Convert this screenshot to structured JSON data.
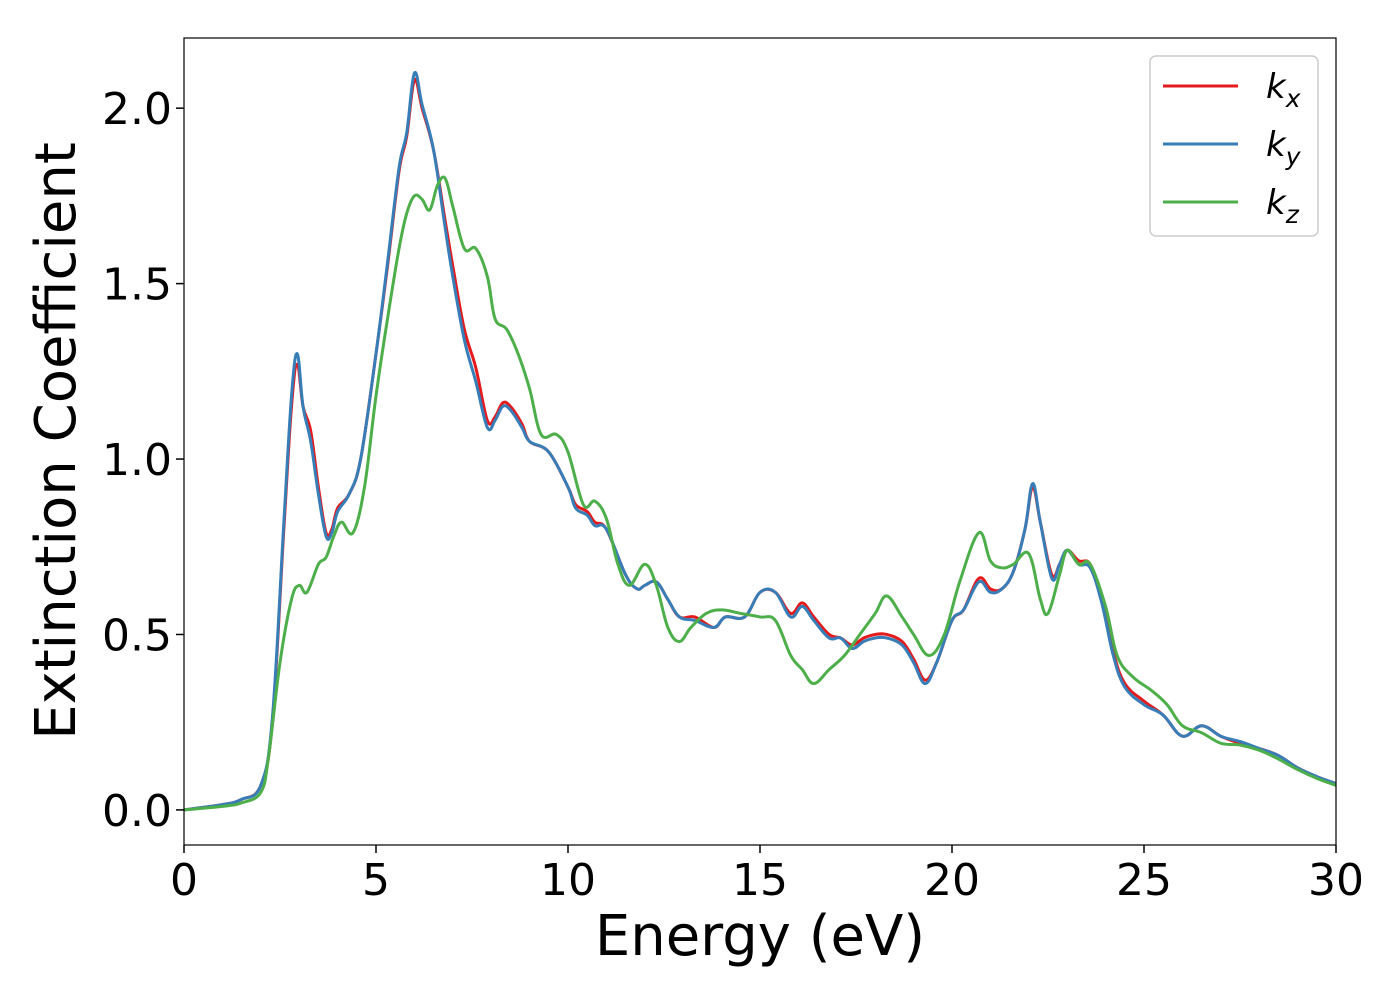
{
  "chart_data": {
    "type": "line",
    "xlabel": "Energy (eV)",
    "ylabel": "Extinction Coefficient",
    "xlim": [
      0,
      30
    ],
    "ylim": [
      -0.1,
      2.2
    ],
    "x_ticks": [
      "0",
      "5",
      "10",
      "15",
      "20",
      "25",
      "30"
    ],
    "y_ticks": [
      "0.0",
      "0.5",
      "1.0",
      "1.5",
      "2.0"
    ],
    "x_tick_values": [
      0,
      5,
      10,
      15,
      20,
      25,
      30
    ],
    "y_tick_values": [
      0.0,
      0.5,
      1.0,
      1.5,
      2.0
    ],
    "grid": false,
    "legend_position": "top-right",
    "series": [
      {
        "name": "k",
        "subscript": "x",
        "color": "#e41a1c",
        "points": [
          [
            0,
            0
          ],
          [
            1,
            0.015
          ],
          [
            1.5,
            0.03
          ],
          [
            2,
            0.07
          ],
          [
            2.3,
            0.25
          ],
          [
            2.6,
            0.8
          ],
          [
            2.8,
            1.15
          ],
          [
            2.95,
            1.27
          ],
          [
            3.1,
            1.15
          ],
          [
            3.3,
            1.08
          ],
          [
            3.5,
            0.92
          ],
          [
            3.7,
            0.79
          ],
          [
            3.85,
            0.8
          ],
          [
            4.0,
            0.86
          ],
          [
            4.3,
            0.9
          ],
          [
            4.6,
            1.0
          ],
          [
            5.0,
            1.3
          ],
          [
            5.3,
            1.55
          ],
          [
            5.6,
            1.82
          ],
          [
            5.8,
            1.92
          ],
          [
            6.0,
            2.08
          ],
          [
            6.2,
            2.0
          ],
          [
            6.5,
            1.88
          ],
          [
            6.8,
            1.68
          ],
          [
            7.0,
            1.55
          ],
          [
            7.3,
            1.37
          ],
          [
            7.6,
            1.26
          ],
          [
            7.9,
            1.11
          ],
          [
            8.1,
            1.12
          ],
          [
            8.3,
            1.16
          ],
          [
            8.5,
            1.15
          ],
          [
            8.8,
            1.1
          ],
          [
            9.0,
            1.05
          ],
          [
            9.5,
            1.02
          ],
          [
            10.0,
            0.92
          ],
          [
            10.2,
            0.87
          ],
          [
            10.5,
            0.85
          ],
          [
            10.7,
            0.82
          ],
          [
            11.0,
            0.8
          ],
          [
            11.5,
            0.67
          ],
          [
            11.8,
            0.63
          ],
          [
            12.0,
            0.64
          ],
          [
            12.3,
            0.65
          ],
          [
            12.6,
            0.6
          ],
          [
            12.9,
            0.55
          ],
          [
            13.3,
            0.55
          ],
          [
            13.8,
            0.52
          ],
          [
            14.1,
            0.55
          ],
          [
            14.6,
            0.55
          ],
          [
            15.0,
            0.62
          ],
          [
            15.4,
            0.62
          ],
          [
            15.8,
            0.56
          ],
          [
            16.1,
            0.59
          ],
          [
            16.4,
            0.55
          ],
          [
            16.8,
            0.5
          ],
          [
            17.1,
            0.49
          ],
          [
            17.4,
            0.47
          ],
          [
            17.7,
            0.49
          ],
          [
            18.0,
            0.5
          ],
          [
            18.3,
            0.5
          ],
          [
            18.7,
            0.48
          ],
          [
            19.0,
            0.43
          ],
          [
            19.3,
            0.37
          ],
          [
            19.6,
            0.42
          ],
          [
            20.0,
            0.54
          ],
          [
            20.3,
            0.57
          ],
          [
            20.7,
            0.66
          ],
          [
            21.0,
            0.63
          ],
          [
            21.3,
            0.63
          ],
          [
            21.6,
            0.68
          ],
          [
            21.9,
            0.8
          ],
          [
            22.1,
            0.92
          ],
          [
            22.3,
            0.82
          ],
          [
            22.6,
            0.67
          ],
          [
            22.8,
            0.7
          ],
          [
            23.0,
            0.74
          ],
          [
            23.3,
            0.71
          ],
          [
            23.6,
            0.7
          ],
          [
            23.9,
            0.6
          ],
          [
            24.2,
            0.45
          ],
          [
            24.5,
            0.36
          ],
          [
            25.0,
            0.31
          ],
          [
            25.5,
            0.27
          ],
          [
            26.0,
            0.21
          ],
          [
            26.5,
            0.24
          ],
          [
            27.0,
            0.21
          ],
          [
            27.5,
            0.19
          ],
          [
            28.0,
            0.175
          ],
          [
            28.5,
            0.155
          ],
          [
            29.0,
            0.12
          ],
          [
            29.5,
            0.095
          ],
          [
            30.0,
            0.075
          ]
        ]
      },
      {
        "name": "k",
        "subscript": "y",
        "color": "#377eb8",
        "points": [
          [
            0,
            0
          ],
          [
            1,
            0.015
          ],
          [
            1.5,
            0.03
          ],
          [
            2,
            0.07
          ],
          [
            2.3,
            0.26
          ],
          [
            2.6,
            0.82
          ],
          [
            2.8,
            1.18
          ],
          [
            2.95,
            1.3
          ],
          [
            3.1,
            1.15
          ],
          [
            3.3,
            1.05
          ],
          [
            3.5,
            0.9
          ],
          [
            3.7,
            0.78
          ],
          [
            3.85,
            0.79
          ],
          [
            4.0,
            0.85
          ],
          [
            4.3,
            0.9
          ],
          [
            4.6,
            1.0
          ],
          [
            5.0,
            1.3
          ],
          [
            5.3,
            1.56
          ],
          [
            5.6,
            1.83
          ],
          [
            5.8,
            1.93
          ],
          [
            6.0,
            2.1
          ],
          [
            6.2,
            2.01
          ],
          [
            6.5,
            1.88
          ],
          [
            6.8,
            1.66
          ],
          [
            7.0,
            1.52
          ],
          [
            7.3,
            1.34
          ],
          [
            7.6,
            1.22
          ],
          [
            7.9,
            1.09
          ],
          [
            8.1,
            1.11
          ],
          [
            8.3,
            1.15
          ],
          [
            8.5,
            1.14
          ],
          [
            8.8,
            1.09
          ],
          [
            9.0,
            1.05
          ],
          [
            9.5,
            1.02
          ],
          [
            10.0,
            0.92
          ],
          [
            10.2,
            0.86
          ],
          [
            10.5,
            0.84
          ],
          [
            10.7,
            0.81
          ],
          [
            11.0,
            0.8
          ],
          [
            11.5,
            0.67
          ],
          [
            11.8,
            0.63
          ],
          [
            12.0,
            0.64
          ],
          [
            12.3,
            0.65
          ],
          [
            12.6,
            0.6
          ],
          [
            12.9,
            0.55
          ],
          [
            13.3,
            0.54
          ],
          [
            13.8,
            0.52
          ],
          [
            14.1,
            0.55
          ],
          [
            14.6,
            0.55
          ],
          [
            15.0,
            0.62
          ],
          [
            15.4,
            0.62
          ],
          [
            15.8,
            0.55
          ],
          [
            16.1,
            0.58
          ],
          [
            16.4,
            0.54
          ],
          [
            16.8,
            0.49
          ],
          [
            17.1,
            0.49
          ],
          [
            17.4,
            0.46
          ],
          [
            17.7,
            0.48
          ],
          [
            18.0,
            0.49
          ],
          [
            18.3,
            0.49
          ],
          [
            18.7,
            0.47
          ],
          [
            19.0,
            0.42
          ],
          [
            19.3,
            0.36
          ],
          [
            19.6,
            0.42
          ],
          [
            20.0,
            0.54
          ],
          [
            20.3,
            0.57
          ],
          [
            20.7,
            0.65
          ],
          [
            21.0,
            0.62
          ],
          [
            21.3,
            0.63
          ],
          [
            21.6,
            0.68
          ],
          [
            21.9,
            0.8
          ],
          [
            22.1,
            0.93
          ],
          [
            22.3,
            0.82
          ],
          [
            22.6,
            0.66
          ],
          [
            22.8,
            0.7
          ],
          [
            23.0,
            0.74
          ],
          [
            23.3,
            0.7
          ],
          [
            23.6,
            0.69
          ],
          [
            23.9,
            0.59
          ],
          [
            24.2,
            0.44
          ],
          [
            24.5,
            0.35
          ],
          [
            25.0,
            0.3
          ],
          [
            25.5,
            0.27
          ],
          [
            26.0,
            0.21
          ],
          [
            26.5,
            0.24
          ],
          [
            27.0,
            0.21
          ],
          [
            27.5,
            0.195
          ],
          [
            28.0,
            0.175
          ],
          [
            28.5,
            0.155
          ],
          [
            29.0,
            0.12
          ],
          [
            29.5,
            0.095
          ],
          [
            30.0,
            0.075
          ]
        ]
      },
      {
        "name": "k",
        "subscript": "z",
        "color": "#4daf4a",
        "points": [
          [
            0,
            0
          ],
          [
            1,
            0.01
          ],
          [
            1.5,
            0.02
          ],
          [
            2,
            0.05
          ],
          [
            2.2,
            0.15
          ],
          [
            2.5,
            0.42
          ],
          [
            2.8,
            0.6
          ],
          [
            3.0,
            0.64
          ],
          [
            3.2,
            0.62
          ],
          [
            3.5,
            0.7
          ],
          [
            3.7,
            0.72
          ],
          [
            3.9,
            0.78
          ],
          [
            4.1,
            0.82
          ],
          [
            4.4,
            0.79
          ],
          [
            4.7,
            0.92
          ],
          [
            5.0,
            1.18
          ],
          [
            5.3,
            1.4
          ],
          [
            5.6,
            1.6
          ],
          [
            5.8,
            1.7
          ],
          [
            6.0,
            1.75
          ],
          [
            6.2,
            1.74
          ],
          [
            6.4,
            1.71
          ],
          [
            6.6,
            1.78
          ],
          [
            6.8,
            1.8
          ],
          [
            7.0,
            1.72
          ],
          [
            7.3,
            1.6
          ],
          [
            7.6,
            1.6
          ],
          [
            7.9,
            1.52
          ],
          [
            8.1,
            1.4
          ],
          [
            8.4,
            1.37
          ],
          [
            8.7,
            1.3
          ],
          [
            9.0,
            1.2
          ],
          [
            9.3,
            1.07
          ],
          [
            9.7,
            1.07
          ],
          [
            10.0,
            1.02
          ],
          [
            10.4,
            0.87
          ],
          [
            10.7,
            0.88
          ],
          [
            11.0,
            0.83
          ],
          [
            11.3,
            0.7
          ],
          [
            11.6,
            0.64
          ],
          [
            12.0,
            0.7
          ],
          [
            12.3,
            0.64
          ],
          [
            12.6,
            0.52
          ],
          [
            12.9,
            0.48
          ],
          [
            13.2,
            0.52
          ],
          [
            13.6,
            0.56
          ],
          [
            14.0,
            0.57
          ],
          [
            14.5,
            0.56
          ],
          [
            15.0,
            0.55
          ],
          [
            15.4,
            0.54
          ],
          [
            15.8,
            0.44
          ],
          [
            16.1,
            0.4
          ],
          [
            16.4,
            0.36
          ],
          [
            16.8,
            0.4
          ],
          [
            17.2,
            0.44
          ],
          [
            17.6,
            0.5
          ],
          [
            18.0,
            0.56
          ],
          [
            18.3,
            0.61
          ],
          [
            18.7,
            0.55
          ],
          [
            19.0,
            0.5
          ],
          [
            19.4,
            0.44
          ],
          [
            19.8,
            0.5
          ],
          [
            20.2,
            0.65
          ],
          [
            20.7,
            0.79
          ],
          [
            21.0,
            0.71
          ],
          [
            21.3,
            0.69
          ],
          [
            21.6,
            0.7
          ],
          [
            22.0,
            0.73
          ],
          [
            22.3,
            0.6
          ],
          [
            22.5,
            0.56
          ],
          [
            22.8,
            0.67
          ],
          [
            23.0,
            0.74
          ],
          [
            23.3,
            0.7
          ],
          [
            23.6,
            0.7
          ],
          [
            24.0,
            0.58
          ],
          [
            24.3,
            0.44
          ],
          [
            24.7,
            0.38
          ],
          [
            25.2,
            0.34
          ],
          [
            25.6,
            0.3
          ],
          [
            26.0,
            0.24
          ],
          [
            26.5,
            0.22
          ],
          [
            27.0,
            0.19
          ],
          [
            27.5,
            0.185
          ],
          [
            28.0,
            0.17
          ],
          [
            28.5,
            0.145
          ],
          [
            29.0,
            0.115
          ],
          [
            29.5,
            0.09
          ],
          [
            30.0,
            0.07
          ]
        ]
      }
    ]
  }
}
